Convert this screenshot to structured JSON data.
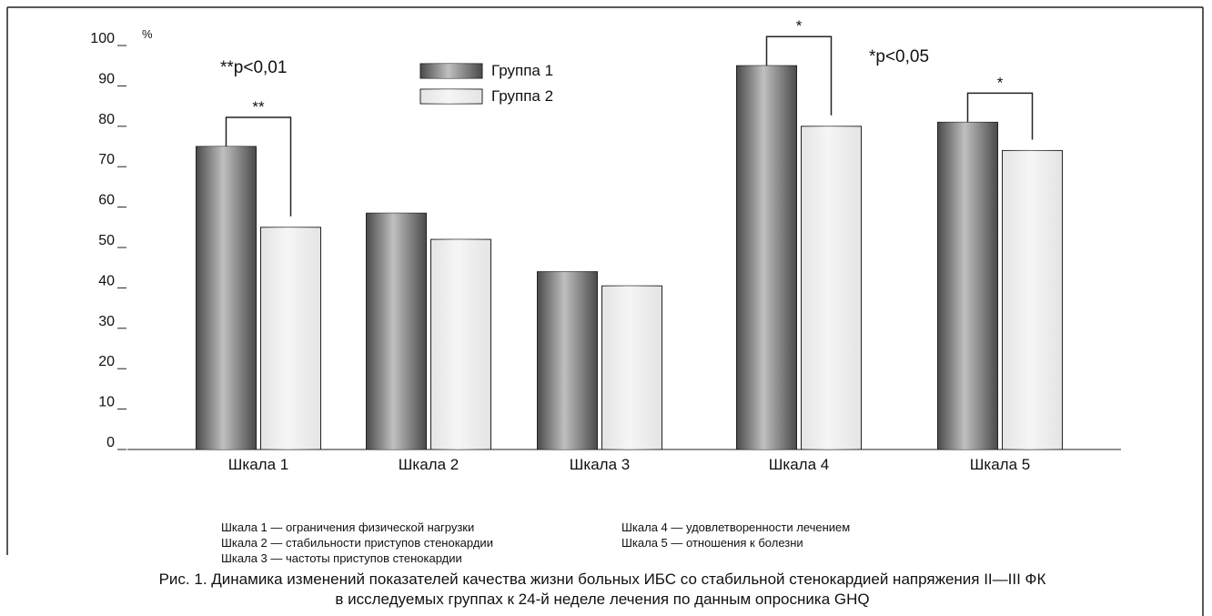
{
  "chart_data": {
    "type": "bar",
    "y_unit": "%",
    "categories": [
      "Шкала 1",
      "Шкала 2",
      "Шкала 3",
      "Шкала 4",
      "Шкала 5"
    ],
    "series": [
      {
        "name": "Группа 1",
        "color": "#4a4a4a",
        "values": [
          75,
          58.5,
          44,
          95,
          81
        ]
      },
      {
        "name": "Группа 2",
        "color": "#e4e4e4",
        "values": [
          55,
          52,
          40.5,
          80,
          74
        ]
      }
    ],
    "ylim": [
      0,
      100
    ],
    "yticks": [
      0,
      10,
      20,
      30,
      40,
      50,
      60,
      70,
      80,
      90,
      100
    ],
    "significance": [
      {
        "category": "Шкала 1",
        "label": "**"
      },
      {
        "category": "Шкала 4",
        "label": "*"
      },
      {
        "category": "Шкала 5",
        "label": "*"
      }
    ],
    "annotations": [
      "**p<0,01",
      "*p<0,05"
    ],
    "notes": [
      [
        "Шкала 1 — ограничения физической нагрузки",
        "Шкала 2 — стабильности приступов стенокардии",
        "Шкала 3 — частоты приступов стенокардии"
      ],
      [
        "Шкала 4 — удовлетворенности лечением",
        "Шкала 5 — отношения к болезни"
      ]
    ],
    "caption": [
      "Рис. 1. Динамика изменений показателей качества жизни больных ИБС со стабильной стенокардией напряжения II—III ФК",
      "в исследуемых группах к 24-й неделе лечения по данным опросника GHQ"
    ]
  }
}
